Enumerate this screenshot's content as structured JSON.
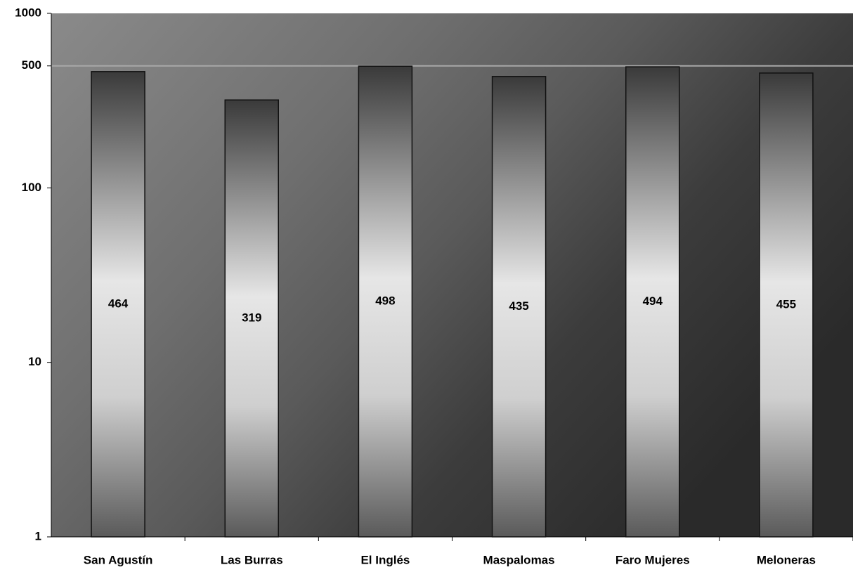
{
  "chart_data": {
    "type": "bar",
    "categories": [
      "San Agustín",
      "Las Burras",
      "El Inglés",
      "Maspalomas",
      "Faro Mujeres",
      "Meloneras"
    ],
    "values": [
      464,
      319,
      498,
      435,
      494,
      455
    ],
    "ylim": [
      1,
      1000
    ],
    "yticks": [
      1,
      10,
      100,
      500,
      1000
    ],
    "log_scale": true,
    "reference_line": 500
  }
}
